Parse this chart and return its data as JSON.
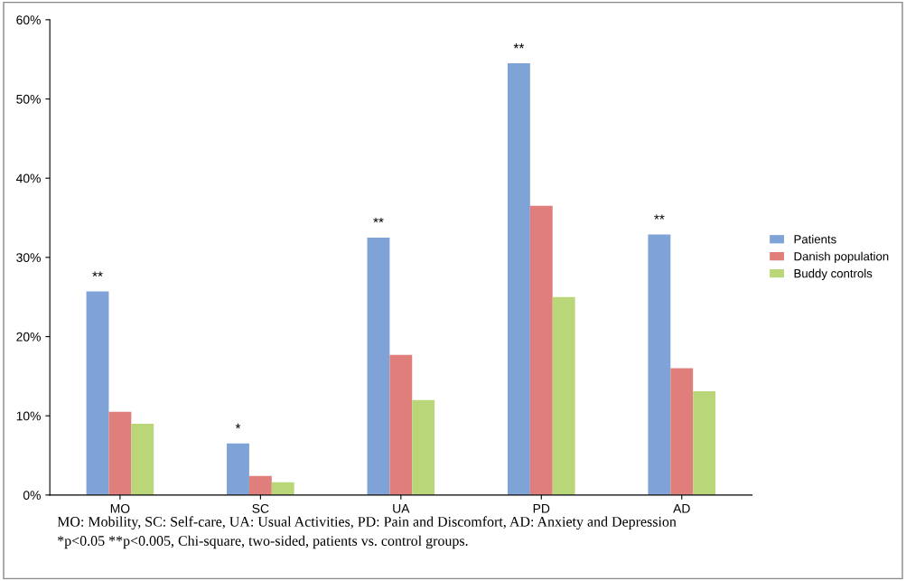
{
  "chart_data": {
    "type": "bar",
    "categories": [
      "MO",
      "SC",
      "UA",
      "PD",
      "AD"
    ],
    "series": [
      {
        "name": "Patients",
        "color": "#7fa3d6",
        "values": [
          25.7,
          6.5,
          32.5,
          54.5,
          32.9
        ]
      },
      {
        "name": "Danish population",
        "color": "#e07e7c",
        "values": [
          10.5,
          2.4,
          17.7,
          36.5,
          16.0
        ]
      },
      {
        "name": "Buddy controls",
        "color": "#b9d678",
        "values": [
          9.0,
          1.6,
          12.0,
          25.0,
          13.1
        ]
      }
    ],
    "ylim": [
      0,
      60
    ],
    "yticks": [
      {
        "value": 0,
        "label": "0%"
      },
      {
        "value": 10,
        "label": "10%"
      },
      {
        "value": 20,
        "label": "20%"
      },
      {
        "value": 30,
        "label": "30%"
      },
      {
        "value": 40,
        "label": "40%"
      },
      {
        "value": 50,
        "label": "50%"
      },
      {
        "value": 60,
        "label": "60%"
      }
    ],
    "grid": false,
    "legend": "right",
    "annotations": [
      "**",
      "*",
      "**",
      "**",
      "**",
      "MO: Mobility, SC: Self-care, UA: Usual Activities, PD: Pain and Discomfort, AD: Anxiety and Depression",
      "*p<0.05 **p<0.005, Chi-square, two-sided, patients vs. control groups."
    ]
  }
}
